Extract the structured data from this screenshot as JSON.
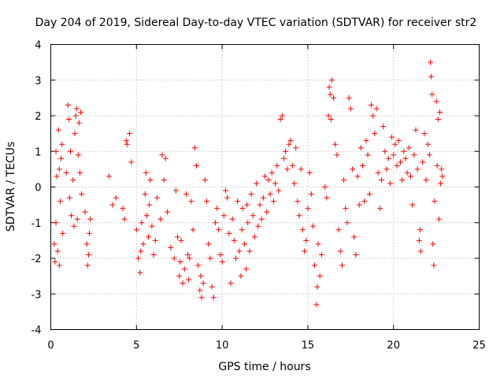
{
  "chart_data": {
    "type": "scatter",
    "title": "Day 204 of 2019, Sidereal Day-to-day VTEC variation (SDTVAR) for receiver str2",
    "xlabel": "GPS time / hours",
    "ylabel": "SDTVAR / TECUs",
    "xlim": [
      0,
      25
    ],
    "ylim": [
      -4,
      4
    ],
    "xticks": [
      0,
      5,
      10,
      15,
      20,
      25
    ],
    "yticks": [
      -4,
      -3,
      -2,
      -1,
      0,
      1,
      2,
      3,
      4
    ],
    "grid": true,
    "marker": "+",
    "color": "#ff0000",
    "series": [
      {
        "name": "SDTVAR",
        "points": [
          [
            0.2,
            -1.6
          ],
          [
            0.25,
            -2.1
          ],
          [
            0.3,
            -1.0
          ],
          [
            0.3,
            1.0
          ],
          [
            0.35,
            0.3
          ],
          [
            0.4,
            -1.8
          ],
          [
            0.45,
            1.6
          ],
          [
            0.5,
            0.5
          ],
          [
            0.5,
            -2.2
          ],
          [
            0.55,
            -0.4
          ],
          [
            0.6,
            0.8
          ],
          [
            0.65,
            1.2
          ],
          [
            0.7,
            -1.3
          ],
          [
            0.9,
            0.4
          ],
          [
            1.0,
            2.3
          ],
          [
            1.05,
            1.9
          ],
          [
            1.1,
            -0.3
          ],
          [
            1.15,
            1.0
          ],
          [
            1.2,
            -0.8
          ],
          [
            1.3,
            0.2
          ],
          [
            1.35,
            -1.1
          ],
          [
            1.4,
            1.5
          ],
          [
            1.45,
            2.0
          ],
          [
            1.5,
            2.2
          ],
          [
            1.55,
            -0.9
          ],
          [
            1.6,
            0.9
          ],
          [
            1.65,
            1.8
          ],
          [
            1.7,
            0.4
          ],
          [
            1.75,
            2.1
          ],
          [
            1.8,
            -0.2
          ],
          [
            2.0,
            -0.7
          ],
          [
            2.1,
            -1.6
          ],
          [
            2.15,
            -2.2
          ],
          [
            2.2,
            -1.9
          ],
          [
            2.25,
            -1.3
          ],
          [
            2.3,
            -0.9
          ],
          [
            3.4,
            0.3
          ],
          [
            3.6,
            -0.5
          ],
          [
            3.8,
            -0.3
          ],
          [
            4.2,
            -0.6
          ],
          [
            4.3,
            -0.9
          ],
          [
            4.4,
            1.3
          ],
          [
            4.45,
            1.2
          ],
          [
            4.6,
            1.5
          ],
          [
            4.7,
            0.7
          ],
          [
            5.0,
            -1.2
          ],
          [
            5.1,
            -2.0
          ],
          [
            5.2,
            -2.4
          ],
          [
            5.25,
            -1.8
          ],
          [
            5.3,
            -1.0
          ],
          [
            5.4,
            -1.6
          ],
          [
            5.5,
            -0.2
          ],
          [
            5.55,
            0.4
          ],
          [
            5.6,
            -0.8
          ],
          [
            5.7,
            -1.4
          ],
          [
            5.75,
            -0.5
          ],
          [
            5.8,
            0.2
          ],
          [
            5.9,
            -1.1
          ],
          [
            6.0,
            -1.9
          ],
          [
            6.1,
            -1.5
          ],
          [
            6.2,
            -0.3
          ],
          [
            6.4,
            -0.9
          ],
          [
            6.5,
            0.9
          ],
          [
            6.6,
            0.2
          ],
          [
            6.7,
            0.8
          ],
          [
            6.8,
            -0.7
          ],
          [
            7.0,
            -1.7
          ],
          [
            7.2,
            -2.0
          ],
          [
            7.3,
            -0.1
          ],
          [
            7.4,
            -1.4
          ],
          [
            7.5,
            -2.5
          ],
          [
            7.55,
            -2.1
          ],
          [
            7.6,
            -1.5
          ],
          [
            7.7,
            -2.7
          ],
          [
            7.8,
            -2.3
          ],
          [
            7.9,
            -0.2
          ],
          [
            8.0,
            -1.9
          ],
          [
            8.05,
            -2.6
          ],
          [
            8.1,
            -2.0
          ],
          [
            8.2,
            -0.4
          ],
          [
            8.3,
            -1.2
          ],
          [
            8.4,
            1.1
          ],
          [
            8.5,
            0.6
          ],
          [
            8.6,
            -2.2
          ],
          [
            8.7,
            -2.9
          ],
          [
            8.75,
            -2.5
          ],
          [
            8.8,
            -3.1
          ],
          [
            8.9,
            -2.7
          ],
          [
            9.0,
            0.2
          ],
          [
            9.1,
            -0.4
          ],
          [
            9.2,
            -1.6
          ],
          [
            9.3,
            -2.0
          ],
          [
            9.4,
            -2.8
          ],
          [
            9.5,
            -3.1
          ],
          [
            9.6,
            -1.0
          ],
          [
            9.7,
            -0.6
          ],
          [
            9.8,
            -1.2
          ],
          [
            9.9,
            -1.9
          ],
          [
            10.0,
            -2.1
          ],
          [
            10.1,
            -0.8
          ],
          [
            10.2,
            -0.1
          ],
          [
            10.3,
            -0.3
          ],
          [
            10.4,
            -1.3
          ],
          [
            10.5,
            -2.7
          ],
          [
            10.6,
            -0.9
          ],
          [
            10.7,
            -1.5
          ],
          [
            10.8,
            -2.0
          ],
          [
            10.9,
            -0.4
          ],
          [
            11.0,
            -1.8
          ],
          [
            11.1,
            -2.5
          ],
          [
            11.15,
            -1.2
          ],
          [
            11.2,
            -0.6
          ],
          [
            11.3,
            -1.6
          ],
          [
            11.4,
            -2.3
          ],
          [
            11.45,
            -0.5
          ],
          [
            11.5,
            -1.0
          ],
          [
            11.6,
            -1.8
          ],
          [
            11.7,
            -0.2
          ],
          [
            11.8,
            -0.8
          ],
          [
            11.9,
            -1.4
          ],
          [
            12.0,
            0.1
          ],
          [
            12.1,
            -1.1
          ],
          [
            12.2,
            -0.5
          ],
          [
            12.3,
            -0.9
          ],
          [
            12.4,
            -0.3
          ],
          [
            12.5,
            0.3
          ],
          [
            12.6,
            -0.7
          ],
          [
            12.7,
            0.2
          ],
          [
            12.8,
            -0.2
          ],
          [
            12.9,
            0.4
          ],
          [
            13.0,
            -0.4
          ],
          [
            13.1,
            0.1
          ],
          [
            13.2,
            0.6
          ],
          [
            13.3,
            -0.1
          ],
          [
            13.4,
            1.9
          ],
          [
            13.5,
            2.0
          ],
          [
            13.6,
            0.8
          ],
          [
            13.7,
            1.0
          ],
          [
            13.8,
            0.5
          ],
          [
            13.9,
            1.2
          ],
          [
            14.0,
            1.3
          ],
          [
            14.1,
            0.6
          ],
          [
            14.2,
            0.1
          ],
          [
            14.3,
            1.1
          ],
          [
            14.4,
            -0.4
          ],
          [
            14.5,
            -0.8
          ],
          [
            14.6,
            0.5
          ],
          [
            14.7,
            -1.2
          ],
          [
            14.8,
            -1.8
          ],
          [
            14.9,
            -1.5
          ],
          [
            15.0,
            -0.6
          ],
          [
            15.1,
            0.4
          ],
          [
            15.2,
            -0.2
          ],
          [
            15.3,
            -1.1
          ],
          [
            15.4,
            -2.2
          ],
          [
            15.5,
            -3.3
          ],
          [
            15.55,
            -2.8
          ],
          [
            15.6,
            -1.6
          ],
          [
            15.7,
            -2.5
          ],
          [
            15.8,
            -1.9
          ],
          [
            16.0,
            0.0
          ],
          [
            16.1,
            -0.3
          ],
          [
            16.2,
            2.0
          ],
          [
            16.25,
            2.8
          ],
          [
            16.3,
            2.6
          ],
          [
            16.35,
            1.9
          ],
          [
            16.4,
            3.0
          ],
          [
            16.5,
            2.5
          ],
          [
            16.6,
            1.2
          ],
          [
            16.7,
            0.9
          ],
          [
            16.8,
            -1.2
          ],
          [
            16.9,
            -1.8
          ],
          [
            17.0,
            -2.2
          ],
          [
            17.1,
            0.2
          ],
          [
            17.2,
            -0.6
          ],
          [
            17.3,
            -1.0
          ],
          [
            17.4,
            2.5
          ],
          [
            17.5,
            2.2
          ],
          [
            17.6,
            0.5
          ],
          [
            17.7,
            -1.4
          ],
          [
            17.8,
            -1.9
          ],
          [
            17.9,
            0.3
          ],
          [
            18.0,
            -0.5
          ],
          [
            18.1,
            1.1
          ],
          [
            18.2,
            0.6
          ],
          [
            18.3,
            -0.4
          ],
          [
            18.4,
            1.3
          ],
          [
            18.5,
            0.9
          ],
          [
            18.6,
            -0.2
          ],
          [
            18.7,
            2.3
          ],
          [
            18.8,
            2.0
          ],
          [
            18.9,
            1.5
          ],
          [
            19.0,
            2.2
          ],
          [
            19.1,
            0.4
          ],
          [
            19.2,
            -0.6
          ],
          [
            19.3,
            0.2
          ],
          [
            19.4,
            1.7
          ],
          [
            19.5,
            1.0
          ],
          [
            19.6,
            0.5
          ],
          [
            19.7,
            0.8
          ],
          [
            19.8,
            0.1
          ],
          [
            19.9,
            1.4
          ],
          [
            20.0,
            0.9
          ],
          [
            20.1,
            1.2
          ],
          [
            20.2,
            0.6
          ],
          [
            20.3,
            1.3
          ],
          [
            20.4,
            0.7
          ],
          [
            20.5,
            0.2
          ],
          [
            20.6,
            1.0
          ],
          [
            20.7,
            0.8
          ],
          [
            20.8,
            0.4
          ],
          [
            20.9,
            1.1
          ],
          [
            21.0,
            0.3
          ],
          [
            21.1,
            -0.5
          ],
          [
            21.2,
            0.9
          ],
          [
            21.3,
            1.6
          ],
          [
            21.4,
            0.5
          ],
          [
            21.5,
            -1.5
          ],
          [
            21.55,
            -1.2
          ],
          [
            21.6,
            -1.8
          ],
          [
            21.7,
            0.7
          ],
          [
            21.8,
            1.5
          ],
          [
            21.9,
            0.2
          ],
          [
            22.0,
            1.2
          ],
          [
            22.1,
            0.9
          ],
          [
            22.15,
            3.5
          ],
          [
            22.2,
            3.1
          ],
          [
            22.25,
            2.6
          ],
          [
            22.3,
            -1.6
          ],
          [
            22.35,
            -2.2
          ],
          [
            22.4,
            -0.4
          ],
          [
            22.5,
            2.4
          ],
          [
            22.55,
            0.6
          ],
          [
            22.6,
            1.9
          ],
          [
            22.65,
            -0.9
          ],
          [
            22.7,
            2.1
          ],
          [
            22.75,
            0.1
          ],
          [
            22.8,
            0.5
          ],
          [
            22.85,
            0.3
          ]
        ]
      }
    ]
  }
}
